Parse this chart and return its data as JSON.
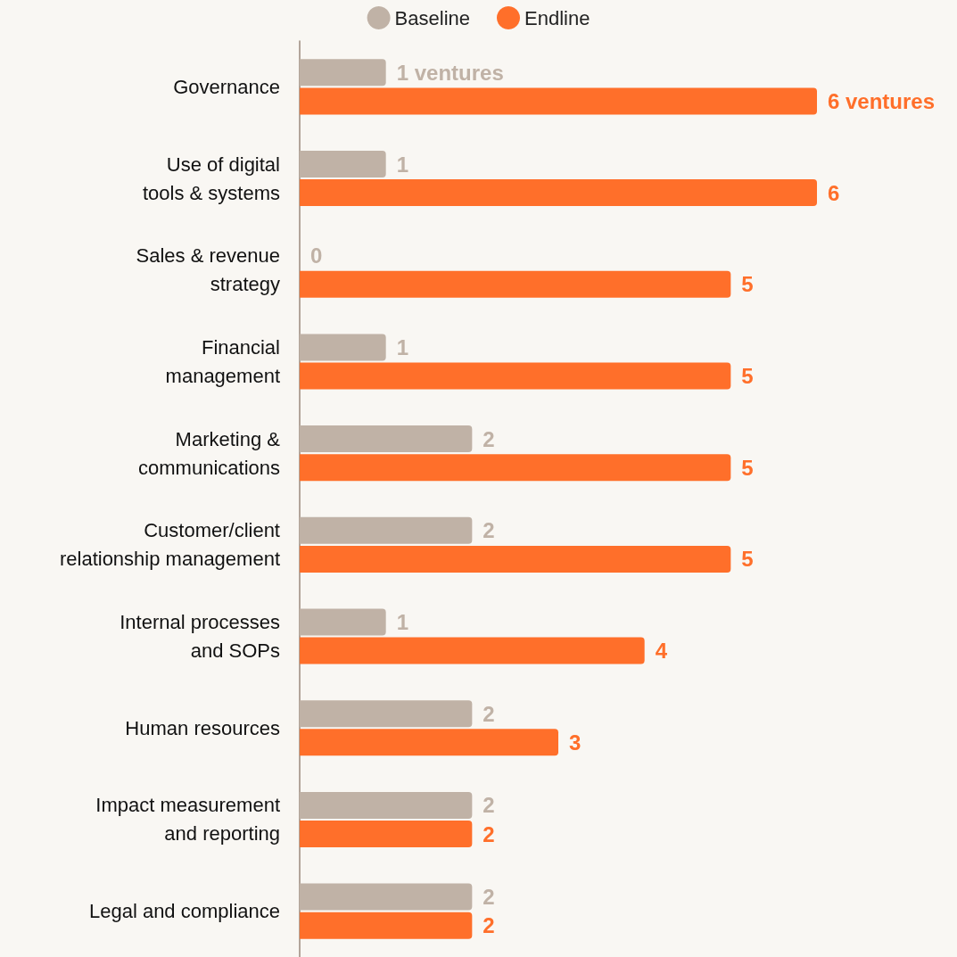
{
  "chart_data": {
    "type": "bar",
    "orientation": "horizontal",
    "categories": [
      "Governance",
      "Use of digital\ntools & systems",
      "Sales & revenue\nstrategy",
      "Financial\nmanagement",
      "Marketing &\ncommunications",
      "Customer/client\nrelationship management",
      "Internal processes\nand SOPs",
      "Human resources",
      "Impact measurement\nand reporting",
      "Legal and compliance"
    ],
    "series": [
      {
        "name": "Baseline",
        "color": "#c0b2a6",
        "values": [
          1,
          1,
          0,
          1,
          2,
          2,
          1,
          2,
          2,
          2
        ],
        "value_labels": [
          "1 ventures",
          "1",
          "0",
          "1",
          "2",
          "2",
          "1",
          "2",
          "2",
          "2"
        ]
      },
      {
        "name": "Endline",
        "color": "#ff6f2a",
        "values": [
          6,
          6,
          5,
          5,
          5,
          5,
          4,
          3,
          2,
          2
        ],
        "value_labels": [
          "6 ventures",
          "6",
          "5",
          "5",
          "5",
          "5",
          "4",
          "3",
          "2",
          "2"
        ]
      }
    ],
    "tick_labels": "y",
    "grid": false,
    "legend": "top"
  }
}
